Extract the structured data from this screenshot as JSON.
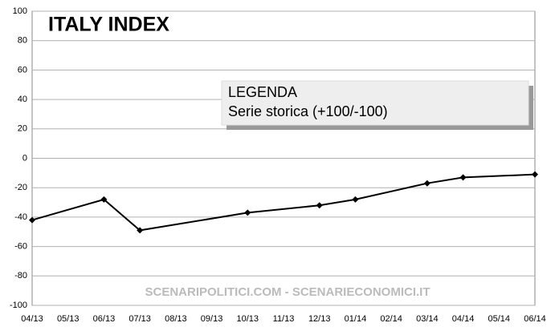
{
  "chart_data": {
    "type": "line",
    "title": "ITALY INDEX",
    "legend_title": "LEGENDA",
    "legend_text": "Serie storica (+100/-100)",
    "watermark": "SCENARIPOLITICI.COM - SCENARIECONOMICI.IT",
    "categories": [
      "04/13",
      "05/13",
      "06/13",
      "07/13",
      "08/13",
      "09/13",
      "10/13",
      "11/13",
      "12/13",
      "01/14",
      "02/14",
      "03/14",
      "04/14",
      "05/14",
      "06/14"
    ],
    "series": [
      {
        "name": "Serie storica",
        "color": "#000000",
        "values": [
          -42,
          null,
          -28,
          -49,
          null,
          null,
          -37,
          null,
          -32,
          -28,
          null,
          -17,
          -13,
          null,
          -11
        ]
      }
    ],
    "ylim": [
      -100,
      100
    ],
    "yticks": [
      -100,
      -80,
      -60,
      -40,
      -20,
      0,
      20,
      40,
      60,
      80,
      100
    ],
    "grid": true
  }
}
